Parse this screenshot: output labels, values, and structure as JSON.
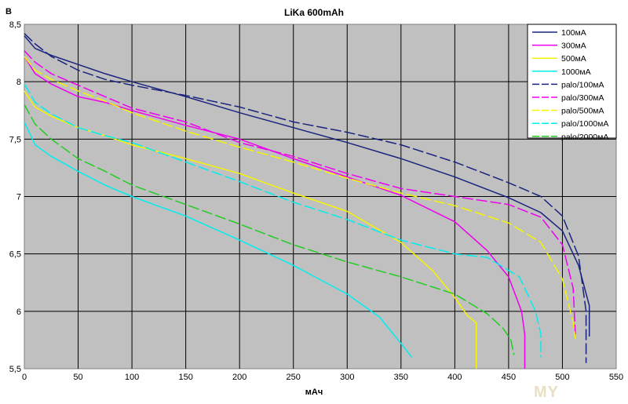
{
  "chart_data": {
    "type": "line",
    "title": "LiKa 600mAh",
    "xlabel": "мАч",
    "ylabel": "В",
    "xlim": [
      0,
      550
    ],
    "ylim": [
      5.5,
      8.5
    ],
    "xticks": [
      "0",
      "50",
      "100",
      "150",
      "200",
      "250",
      "300",
      "350",
      "400",
      "450",
      "500",
      "550"
    ],
    "yticks": [
      "5,5",
      "6",
      "6,5",
      "7",
      "7,5",
      "8",
      "8,5"
    ],
    "grid": true,
    "legend_position": "top-right",
    "watermark": "MY",
    "series": [
      {
        "name": "100мА",
        "color": "#1a237e",
        "dash": "solid",
        "points": [
          [
            0,
            8.4
          ],
          [
            10,
            8.29
          ],
          [
            25,
            8.23
          ],
          [
            50,
            8.15
          ],
          [
            75,
            8.07
          ],
          [
            100,
            8.0
          ],
          [
            150,
            7.87
          ],
          [
            200,
            7.73
          ],
          [
            250,
            7.6
          ],
          [
            300,
            7.47
          ],
          [
            350,
            7.33
          ],
          [
            400,
            7.17
          ],
          [
            450,
            6.99
          ],
          [
            480,
            6.86
          ],
          [
            500,
            6.7
          ],
          [
            515,
            6.4
          ],
          [
            525,
            6.05
          ],
          [
            525,
            5.78
          ]
        ]
      },
      {
        "name": "300мА",
        "color": "#ee00ee",
        "dash": "solid",
        "points": [
          [
            0,
            8.22
          ],
          [
            10,
            8.07
          ],
          [
            25,
            7.98
          ],
          [
            50,
            7.87
          ],
          [
            75,
            7.82
          ],
          [
            100,
            7.75
          ],
          [
            150,
            7.62
          ],
          [
            200,
            7.5
          ],
          [
            250,
            7.33
          ],
          [
            300,
            7.17
          ],
          [
            350,
            7.01
          ],
          [
            400,
            6.78
          ],
          [
            430,
            6.53
          ],
          [
            450,
            6.3
          ],
          [
            462,
            6.0
          ],
          [
            465,
            5.8
          ],
          [
            465,
            5.5
          ]
        ]
      },
      {
        "name": "500мА",
        "color": "#f5f500",
        "dash": "solid",
        "points": [
          [
            0,
            7.92
          ],
          [
            10,
            7.78
          ],
          [
            25,
            7.7
          ],
          [
            50,
            7.6
          ],
          [
            75,
            7.53
          ],
          [
            100,
            7.45
          ],
          [
            150,
            7.33
          ],
          [
            200,
            7.2
          ],
          [
            250,
            7.03
          ],
          [
            300,
            6.87
          ],
          [
            350,
            6.6
          ],
          [
            380,
            6.35
          ],
          [
            400,
            6.12
          ],
          [
            412,
            5.96
          ],
          [
            420,
            5.9
          ],
          [
            420,
            5.5
          ]
        ]
      },
      {
        "name": "1000мА",
        "color": "#00eeee",
        "dash": "solid",
        "points": [
          [
            0,
            7.65
          ],
          [
            10,
            7.45
          ],
          [
            25,
            7.35
          ],
          [
            50,
            7.22
          ],
          [
            75,
            7.1
          ],
          [
            100,
            7.0
          ],
          [
            150,
            6.83
          ],
          [
            200,
            6.62
          ],
          [
            250,
            6.4
          ],
          [
            300,
            6.15
          ],
          [
            330,
            5.95
          ],
          [
            350,
            5.72
          ],
          [
            360,
            5.6
          ]
        ]
      },
      {
        "name": "palo/100мА",
        "color": "#1a237e",
        "dash": "long",
        "points": [
          [
            0,
            8.42
          ],
          [
            10,
            8.33
          ],
          [
            25,
            8.22
          ],
          [
            50,
            8.1
          ],
          [
            75,
            8.02
          ],
          [
            100,
            7.97
          ],
          [
            150,
            7.88
          ],
          [
            200,
            7.78
          ],
          [
            250,
            7.65
          ],
          [
            300,
            7.56
          ],
          [
            350,
            7.45
          ],
          [
            400,
            7.3
          ],
          [
            450,
            7.12
          ],
          [
            480,
            7.0
          ],
          [
            500,
            6.83
          ],
          [
            515,
            6.48
          ],
          [
            522,
            6.0
          ],
          [
            522,
            5.55
          ]
        ]
      },
      {
        "name": "palo/300мА",
        "color": "#ee00ee",
        "dash": "long",
        "points": [
          [
            0,
            8.27
          ],
          [
            10,
            8.17
          ],
          [
            25,
            8.07
          ],
          [
            50,
            7.97
          ],
          [
            75,
            7.87
          ],
          [
            100,
            7.77
          ],
          [
            150,
            7.65
          ],
          [
            200,
            7.47
          ],
          [
            250,
            7.35
          ],
          [
            300,
            7.2
          ],
          [
            350,
            7.07
          ],
          [
            400,
            7.0
          ],
          [
            450,
            6.93
          ],
          [
            480,
            6.82
          ],
          [
            500,
            6.58
          ],
          [
            510,
            6.2
          ],
          [
            512,
            5.8
          ]
        ]
      },
      {
        "name": "palo/500мА",
        "color": "#f5f500",
        "dash": "long",
        "points": [
          [
            0,
            8.22
          ],
          [
            10,
            8.1
          ],
          [
            25,
            8.02
          ],
          [
            50,
            7.92
          ],
          [
            75,
            7.83
          ],
          [
            100,
            7.73
          ],
          [
            150,
            7.57
          ],
          [
            200,
            7.43
          ],
          [
            250,
            7.3
          ],
          [
            300,
            7.16
          ],
          [
            350,
            7.03
          ],
          [
            400,
            6.92
          ],
          [
            450,
            6.77
          ],
          [
            480,
            6.6
          ],
          [
            500,
            6.28
          ],
          [
            510,
            5.9
          ],
          [
            512,
            5.76
          ]
        ]
      },
      {
        "name": "palo/1000мА",
        "color": "#00eeee",
        "dash": "long",
        "points": [
          [
            0,
            7.98
          ],
          [
            10,
            7.82
          ],
          [
            25,
            7.72
          ],
          [
            50,
            7.6
          ],
          [
            75,
            7.53
          ],
          [
            100,
            7.47
          ],
          [
            150,
            7.3
          ],
          [
            200,
            7.13
          ],
          [
            250,
            6.95
          ],
          [
            300,
            6.8
          ],
          [
            350,
            6.62
          ],
          [
            400,
            6.5
          ],
          [
            430,
            6.47
          ],
          [
            460,
            6.3
          ],
          [
            475,
            6.0
          ],
          [
            480,
            5.8
          ],
          [
            480,
            5.6
          ]
        ]
      },
      {
        "name": "palo/2000мА",
        "color": "#22cc22",
        "dash": "long",
        "points": [
          [
            0,
            7.8
          ],
          [
            10,
            7.63
          ],
          [
            25,
            7.5
          ],
          [
            50,
            7.33
          ],
          [
            75,
            7.22
          ],
          [
            100,
            7.1
          ],
          [
            150,
            6.93
          ],
          [
            200,
            6.76
          ],
          [
            250,
            6.58
          ],
          [
            300,
            6.43
          ],
          [
            350,
            6.3
          ],
          [
            400,
            6.15
          ],
          [
            430,
            5.98
          ],
          [
            445,
            5.85
          ],
          [
            452,
            5.75
          ],
          [
            455,
            5.62
          ]
        ]
      }
    ]
  }
}
